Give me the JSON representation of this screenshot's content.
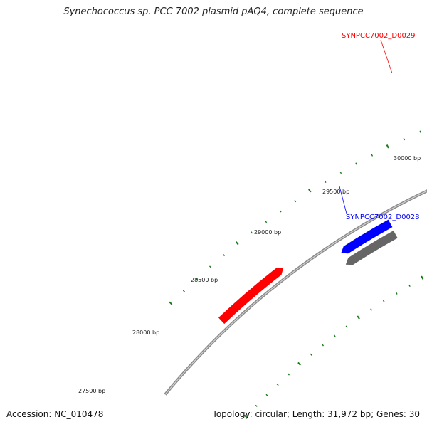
{
  "title": "Synechococcus sp. PCC 7002 plasmid pAQ4, complete sequence",
  "footer": {
    "accession": "Accession: NC_010478",
    "summary": "Topology: circular; Length: 31,972 bp; Genes: 30"
  },
  "tick_labels": [
    "27500 bp",
    "28000 bp",
    "28500 bp",
    "29000 bp",
    "29500 bp",
    "30000 bp"
  ],
  "genes": [
    {
      "name": "SYNPCC7002_D0029",
      "color": "#ff0000",
      "labeled": true
    },
    {
      "name": "SYNPCC7002_D0028",
      "color": "#0000ff",
      "labeled": true
    },
    {
      "name": "",
      "color": "#ff0000",
      "labeled": false
    },
    {
      "name": "",
      "color": "#666666",
      "labeled": false
    }
  ],
  "colors": {
    "backbone": "#8a8a8a",
    "ticks": "#1a7a1a",
    "forward_gene": "#ff0000",
    "cds_highlight": "#0000ff",
    "reverse_feature": "#666666"
  }
}
